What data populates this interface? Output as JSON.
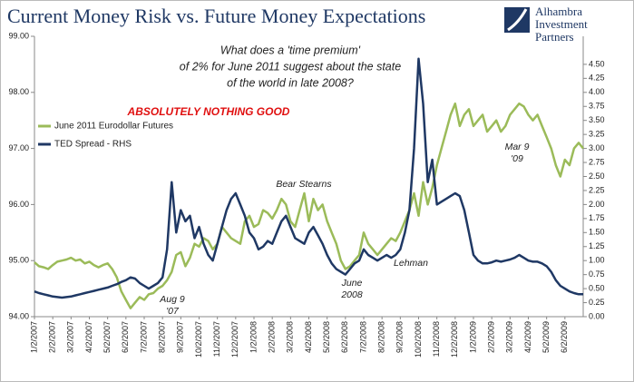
{
  "chart_data": {
    "type": "line",
    "title": "Current Money Risk vs. Future Money Expectations",
    "logo": [
      "Alhambra",
      "Investment",
      "Partners"
    ],
    "question": [
      "What does a 'time premium'",
      "of 2% for June 2011 suggest about the state",
      "of the world in late 2008?"
    ],
    "headline": "ABSOLUTELY NOTHING GOOD",
    "annotations": [
      "Bear Stearns",
      "June",
      "2008",
      "Lehman",
      "Aug 9",
      "'07",
      "Mar 9",
      "'09"
    ],
    "legend": "upper left",
    "categories": [
      "1/2/2007",
      null,
      null,
      null,
      "2/2/2007",
      null,
      null,
      null,
      "3/2/2007",
      null,
      null,
      null,
      "4/2/2007",
      null,
      null,
      null,
      "5/2/2007",
      null,
      null,
      null,
      "6/2/2007",
      null,
      null,
      null,
      "7/2/2007",
      null,
      null,
      null,
      "8/2/2007",
      null,
      null,
      null,
      "9/2/2007",
      null,
      null,
      null,
      "10/2/2007",
      null,
      null,
      null,
      "11/2/2007",
      null,
      null,
      null,
      "12/2/2007",
      null,
      null,
      null,
      "1/2/2008",
      null,
      null,
      null,
      "2/2/2008",
      null,
      null,
      null,
      "3/2/2008",
      null,
      null,
      null,
      "4/2/2008",
      null,
      null,
      null,
      "5/2/2008",
      null,
      null,
      null,
      "6/2/2008",
      null,
      null,
      null,
      "7/2/2008",
      null,
      null,
      null,
      "8/2/2008",
      null,
      null,
      null,
      "9/2/2008",
      null,
      null,
      null,
      "10/2/2008",
      null,
      null,
      null,
      "11/2/2008",
      null,
      null,
      null,
      "12/2/2008",
      null,
      null,
      null,
      "1/2/2009",
      null,
      null,
      null,
      "2/2/2009",
      null,
      null,
      null,
      "3/2/2009",
      null,
      null,
      null,
      "4/2/2009",
      null,
      null,
      null,
      "5/2/2009",
      null,
      null,
      null,
      "6/2/2009",
      null,
      null,
      null,
      null
    ],
    "series": [
      {
        "name": "June 2011 Eurodollar Futures",
        "color": "#9bbb59",
        "axis": "y",
        "values": [
          94.97,
          94.9,
          94.88,
          94.85,
          94.92,
          94.98,
          95.0,
          95.02,
          95.05,
          95.0,
          95.02,
          94.95,
          94.98,
          94.92,
          94.88,
          94.92,
          94.95,
          94.85,
          94.7,
          94.45,
          94.3,
          94.15,
          94.25,
          94.35,
          94.3,
          94.4,
          94.42,
          94.5,
          94.55,
          94.65,
          94.8,
          95.1,
          95.15,
          94.9,
          95.05,
          95.3,
          95.25,
          95.4,
          95.35,
          95.2,
          95.3,
          95.6,
          95.5,
          95.4,
          95.35,
          95.3,
          95.7,
          95.8,
          95.6,
          95.65,
          95.9,
          95.85,
          95.75,
          95.9,
          96.1,
          96.0,
          95.7,
          95.6,
          95.9,
          96.2,
          95.7,
          96.1,
          95.9,
          96.0,
          95.7,
          95.5,
          95.3,
          95.0,
          94.85,
          94.9,
          95.0,
          95.1,
          95.5,
          95.3,
          95.2,
          95.1,
          95.2,
          95.3,
          95.4,
          95.35,
          95.5,
          95.7,
          95.9,
          96.2,
          95.8,
          96.4,
          96.0,
          96.3,
          96.7,
          97.0,
          97.3,
          97.6,
          97.8,
          97.4,
          97.6,
          97.7,
          97.4,
          97.5,
          97.6,
          97.3,
          97.4,
          97.5,
          97.3,
          97.4,
          97.6,
          97.7,
          97.8,
          97.75,
          97.6,
          97.5,
          97.6,
          97.4,
          97.2,
          97.0,
          96.7,
          96.5,
          96.8,
          96.7,
          97.0,
          97.1,
          97.0
        ]
      },
      {
        "name": "TED Spread - RHS",
        "color": "#1f3864",
        "axis": "y2",
        "values": [
          0.45,
          0.42,
          0.4,
          0.38,
          0.36,
          0.35,
          0.34,
          0.35,
          0.36,
          0.38,
          0.4,
          0.42,
          0.44,
          0.46,
          0.48,
          0.5,
          0.52,
          0.55,
          0.58,
          0.62,
          0.65,
          0.7,
          0.68,
          0.6,
          0.55,
          0.5,
          0.55,
          0.6,
          0.7,
          1.2,
          2.4,
          1.5,
          1.9,
          1.7,
          1.8,
          1.4,
          1.6,
          1.3,
          1.1,
          1.0,
          1.3,
          1.6,
          1.9,
          2.1,
          2.2,
          2.0,
          1.8,
          1.5,
          1.4,
          1.2,
          1.25,
          1.35,
          1.3,
          1.5,
          1.7,
          1.8,
          1.6,
          1.4,
          1.35,
          1.3,
          1.5,
          1.6,
          1.45,
          1.3,
          1.1,
          0.95,
          0.85,
          0.8,
          0.75,
          0.85,
          0.95,
          1.0,
          1.2,
          1.1,
          1.05,
          1.0,
          1.05,
          1.1,
          1.05,
          1.1,
          1.2,
          1.5,
          1.9,
          3.0,
          4.6,
          3.8,
          2.4,
          2.8,
          2.0,
          2.05,
          2.1,
          2.15,
          2.2,
          2.15,
          1.9,
          1.5,
          1.1,
          1.0,
          0.95,
          0.95,
          0.97,
          1.0,
          0.98,
          1.0,
          1.02,
          1.05,
          1.1,
          1.05,
          1.0,
          0.98,
          0.98,
          0.95,
          0.9,
          0.8,
          0.65,
          0.55,
          0.5,
          0.45,
          0.42,
          0.4,
          0.4
        ]
      }
    ],
    "ylim": [
      94,
      99
    ],
    "yticks": [
      {
        "value": 94,
        "label": "94.00"
      },
      {
        "value": 95,
        "label": "95.00"
      },
      {
        "value": 96,
        "label": "96.00"
      },
      {
        "value": 97,
        "label": "97.00"
      },
      {
        "value": 98,
        "label": "98.00"
      },
      {
        "value": 99,
        "label": "99.00"
      }
    ],
    "y2lim": [
      0,
      5
    ],
    "y2ticks": [
      {
        "value": 0,
        "label": "0.00"
      },
      {
        "value": 0.25,
        "label": "0.25"
      },
      {
        "value": 0.5,
        "label": "0.50"
      },
      {
        "value": 0.75,
        "label": "0.75"
      },
      {
        "value": 1,
        "label": "1.00"
      },
      {
        "value": 1.25,
        "label": "1.25"
      },
      {
        "value": 1.5,
        "label": "1.50"
      },
      {
        "value": 1.75,
        "label": "1.75"
      },
      {
        "value": 2,
        "label": "2.00"
      },
      {
        "value": 2.25,
        "label": "2.25"
      },
      {
        "value": 2.5,
        "label": "2.50"
      },
      {
        "value": 2.75,
        "label": "2.75"
      },
      {
        "value": 3,
        "label": "3.00"
      },
      {
        "value": 3.25,
        "label": "3.25"
      },
      {
        "value": 3.5,
        "label": "3.50"
      },
      {
        "value": 3.75,
        "label": "3.75"
      },
      {
        "value": 4,
        "label": "4.00"
      },
      {
        "value": 4.25,
        "label": "4.25"
      },
      {
        "value": 4.5,
        "label": "4.50"
      }
    ]
  }
}
